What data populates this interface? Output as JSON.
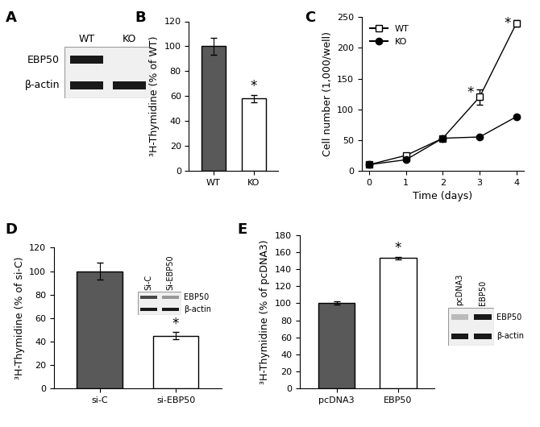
{
  "chart_data": [
    {
      "type": "blot",
      "panel_label": "A",
      "lanes": [
        "WT",
        "KO"
      ],
      "rows": [
        {
          "name": "EBP50",
          "bands": [
            1.0,
            0.0
          ]
        },
        {
          "name": "β-actin",
          "bands": [
            1.0,
            1.0
          ]
        }
      ]
    },
    {
      "type": "bar",
      "panel_label": "B",
      "categories": [
        "WT",
        "KO"
      ],
      "values": [
        100,
        58
      ],
      "errors": [
        7,
        3
      ],
      "colors": [
        "#595959",
        "#ffffff"
      ],
      "y_label": "³H-Thymidine (% of WT)",
      "ylim": [
        0,
        120
      ],
      "yticks": [
        0,
        20,
        40,
        60,
        80,
        100,
        120
      ],
      "annotations": [
        {
          "text": "*",
          "category": "KO"
        }
      ]
    },
    {
      "type": "line",
      "panel_label": "C",
      "x": [
        0,
        1,
        2,
        3,
        4
      ],
      "x_label": "Time (days)",
      "y_label": "Cell number (1,000/well)",
      "xlim": [
        -0.2,
        4.2
      ],
      "xticks": [
        0,
        1,
        2,
        3,
        4
      ],
      "ylim": [
        0,
        250
      ],
      "yticks": [
        0,
        50,
        100,
        150,
        200,
        250
      ],
      "legend": "upper left",
      "series": [
        {
          "name": "WT",
          "color": "#000000",
          "marker": "square_open",
          "line_style": "solid",
          "values": [
            10,
            25,
            53,
            120,
            240
          ],
          "errors": [
            2,
            3,
            3,
            12,
            5
          ]
        },
        {
          "name": "KO",
          "color": "#000000",
          "marker": "circle",
          "line_style": "solid",
          "values": [
            10,
            18,
            53,
            55,
            88
          ],
          "errors": [
            2,
            2,
            3,
            3,
            3
          ]
        }
      ],
      "annotations": [
        {
          "text": "*",
          "x": 3
        },
        {
          "text": "*",
          "x": 4
        }
      ]
    },
    {
      "type": "bar",
      "panel_label": "D",
      "categories": [
        "si-C",
        "si-EBP50"
      ],
      "values": [
        100,
        45
      ],
      "errors": [
        7,
        3
      ],
      "colors": [
        "#595959",
        "#ffffff"
      ],
      "y_label": "³H-Thymidine (% of si-C)",
      "ylim": [
        0,
        120
      ],
      "yticks": [
        0,
        20,
        40,
        60,
        80,
        100,
        120
      ],
      "annotations": [
        {
          "text": "*",
          "category": "si-EBP50"
        }
      ],
      "blot": {
        "lanes": [
          "Si-C",
          "Si-EBP50"
        ],
        "rows": [
          {
            "name": "EBP50",
            "bands": [
              0.8,
              0.45
            ]
          },
          {
            "name": "β-actin",
            "bands": [
              1.0,
              1.0
            ]
          }
        ]
      }
    },
    {
      "type": "bar",
      "panel_label": "E",
      "categories": [
        "pcDNA3",
        "EBP50"
      ],
      "values": [
        100,
        153
      ],
      "errors": [
        2,
        1.5
      ],
      "colors": [
        "#595959",
        "#ffffff"
      ],
      "y_label": "³H-Thymidine (% of pcDNA3)",
      "ylim": [
        0,
        180
      ],
      "yticks": [
        0,
        20,
        40,
        60,
        80,
        100,
        120,
        140,
        160,
        180
      ],
      "annotations": [
        {
          "text": "*",
          "category": "EBP50"
        }
      ],
      "blot": {
        "lanes": [
          "pcDNA3",
          "EBP50"
        ],
        "rows": [
          {
            "name": "EBP50",
            "bands": [
              0.3,
              1.0
            ]
          },
          {
            "name": "β-actin",
            "bands": [
              1.0,
              1.0
            ]
          }
        ]
      }
    }
  ]
}
